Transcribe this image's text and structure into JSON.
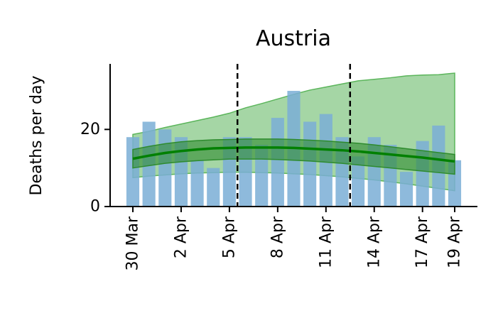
{
  "chart_data": {
    "type": "bar",
    "title": "Austria",
    "xlabel": "",
    "ylabel": "Deaths per day",
    "dates": [
      "30 Mar",
      "31 Mar",
      "1 Apr",
      "2 Apr",
      "3 Apr",
      "4 Apr",
      "5 Apr",
      "6 Apr",
      "7 Apr",
      "8 Apr",
      "9 Apr",
      "10 Apr",
      "11 Apr",
      "12 Apr",
      "13 Apr",
      "14 Apr",
      "15 Apr",
      "16 Apr",
      "17 Apr",
      "18 Apr",
      "19 Apr"
    ],
    "values": [
      18,
      22,
      20,
      18,
      12,
      10,
      18,
      18,
      16,
      23,
      30,
      22,
      24,
      18,
      13,
      18,
      16,
      9,
      17,
      21,
      12
    ],
    "x_ticks": [
      "30 Mar",
      "2 Apr",
      "5 Apr",
      "8 Apr",
      "11 Apr",
      "14 Apr",
      "17 Apr",
      "19 Apr"
    ],
    "y_ticks": [
      0,
      20
    ],
    "ylim": [
      0,
      37
    ],
    "vlines": [
      "6 Apr",
      "13 Apr"
    ],
    "series": [
      {
        "kind": "bars",
        "color": "#7aaed6",
        "values": [
          18,
          22,
          20,
          18,
          12,
          10,
          18,
          18,
          16,
          23,
          30,
          22,
          24,
          18,
          13,
          18,
          16,
          9,
          17,
          21,
          12
        ]
      },
      {
        "kind": "mean-line",
        "color": "#008000",
        "values": [
          12.4,
          13.2,
          13.9,
          14.4,
          14.8,
          15.1,
          15.2,
          15.3,
          15.3,
          15.3,
          15.2,
          15.0,
          14.8,
          14.6,
          14.3,
          13.9,
          13.5,
          13.1,
          12.7,
          12.2,
          11.7
        ]
      },
      {
        "kind": "inner-band",
        "color": "#2e8b2e",
        "lower": [
          10.0,
          10.6,
          11.2,
          11.6,
          11.9,
          12.1,
          12.3,
          12.3,
          12.3,
          12.2,
          12.0,
          11.8,
          11.5,
          11.2,
          10.8,
          10.4,
          10.0,
          9.6,
          9.2,
          8.8,
          8.4
        ],
        "upper": [
          14.8,
          15.6,
          16.3,
          16.8,
          17.1,
          17.3,
          17.4,
          17.5,
          17.5,
          17.5,
          17.4,
          17.2,
          17.0,
          16.7,
          16.4,
          16.0,
          15.5,
          15.0,
          14.5,
          14.0,
          13.5
        ]
      },
      {
        "kind": "outer-band",
        "color": "#5bb55b",
        "lower": [
          7.5,
          7.9,
          8.2,
          8.5,
          8.7,
          8.8,
          8.9,
          8.9,
          8.8,
          8.7,
          8.5,
          8.3,
          8.0,
          7.7,
          7.3,
          6.9,
          6.4,
          5.9,
          5.3,
          4.7,
          4.1
        ],
        "upper": [
          18.7,
          19.5,
          20.5,
          21.4,
          22.3,
          23.2,
          24.2,
          25.6,
          26.7,
          27.9,
          29.1,
          30.2,
          31.0,
          31.8,
          32.6,
          33.0,
          33.4,
          33.9,
          34.1,
          34.2,
          34.6
        ]
      }
    ]
  }
}
